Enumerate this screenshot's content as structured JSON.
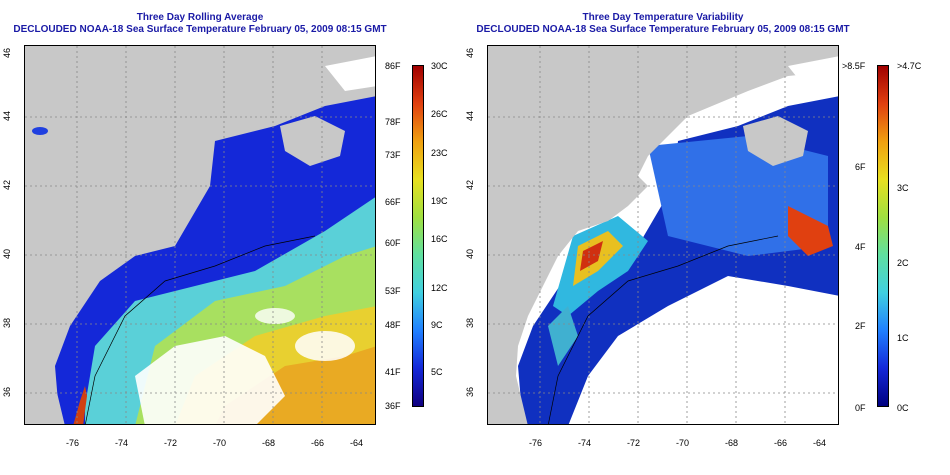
{
  "left_panel": {
    "title_line1": "Three Day Rolling Average",
    "title_line2": "DECLOUDED NOAA-18 Sea Surface Temperature February 05, 2009 08:15 GMT",
    "colorbar_f": [
      "86F",
      "78F",
      "73F",
      "66F",
      "60F",
      "53F",
      "48F",
      "41F",
      "36F"
    ],
    "colorbar_c": [
      "30C",
      "26C",
      "23C",
      "19C",
      "16C",
      "12C",
      "9C",
      "5C"
    ]
  },
  "right_panel": {
    "title_line1": "Three Day Temperature Variability",
    "title_line2": "DECLOUDED NOAA-18 Sea Surface Temperature February 05, 2009 08:15 GMT",
    "colorbar_f": [
      ">8.5F",
      "6F",
      "4F",
      "2F",
      "0F"
    ],
    "colorbar_c": [
      ">4.7C",
      "3C",
      "2C",
      "1C",
      "0C"
    ]
  },
  "axes": {
    "x_ticks": [
      "-76",
      "-74",
      "-72",
      "-70",
      "-68",
      "-66",
      "-64"
    ],
    "y_ticks": [
      "46",
      "44",
      "42",
      "40",
      "38",
      "36"
    ]
  },
  "colors": {
    "title": "#1a1aa6",
    "land": "#c8c8c8",
    "nodata": "#ffffff"
  }
}
